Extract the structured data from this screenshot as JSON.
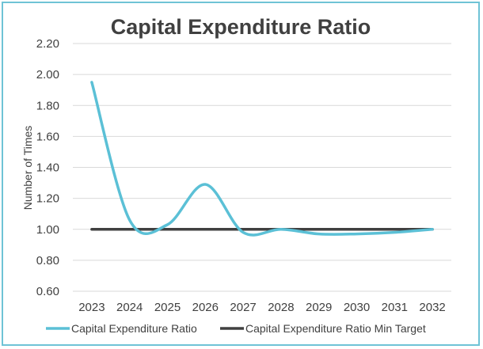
{
  "chart_data": {
    "type": "line",
    "title": "Capital Expenditure Ratio",
    "xlabel": "",
    "ylabel": "Number of Times",
    "x": [
      "2023",
      "2024",
      "2025",
      "2026",
      "2027",
      "2028",
      "2029",
      "2030",
      "2031",
      "2032"
    ],
    "y_ticks": [
      "0.60",
      "0.80",
      "1.00",
      "1.20",
      "1.40",
      "1.60",
      "1.80",
      "2.00",
      "2.20"
    ],
    "ylim": [
      0.6,
      2.2
    ],
    "grid": true,
    "legend_position": "bottom",
    "series": [
      {
        "name": "Capital Expenditure Ratio",
        "values": [
          1.95,
          1.06,
          1.03,
          1.29,
          0.98,
          1.0,
          0.97,
          0.97,
          0.98,
          1.0
        ],
        "color": "#5bc0d6",
        "smooth": true
      },
      {
        "name": "Capital Expenditure Ratio Min Target",
        "values": [
          1.0,
          1.0,
          1.0,
          1.0,
          1.0,
          1.0,
          1.0,
          1.0,
          1.0,
          1.0
        ],
        "color": "#404040",
        "smooth": false
      }
    ]
  }
}
